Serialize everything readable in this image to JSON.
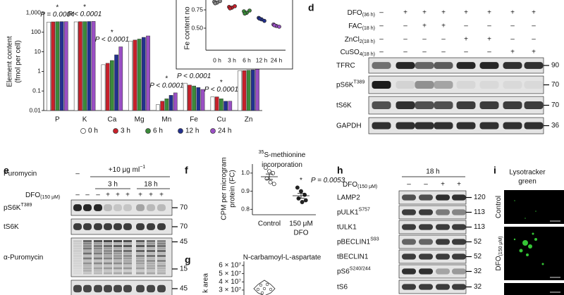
{
  "chart_data": [
    {
      "type": "bar",
      "ylabel": [
        "Element content",
        "(fmol per cell)"
      ],
      "categories": [
        "P",
        "K",
        "Ca",
        "Mg",
        "Mn",
        "Fe",
        "Cu",
        "Zn"
      ],
      "series": [
        {
          "name": "0 h",
          "color": "#ffffff",
          "values": [
            330,
            340,
            2.2,
            35,
            0.02,
            0.25,
            0.05,
            1.1
          ]
        },
        {
          "name": "3 h",
          "color": "#c8202a",
          "values": [
            340,
            350,
            2.6,
            40,
            0.03,
            0.2,
            0.05,
            1.1
          ]
        },
        {
          "name": "6 h",
          "color": "#3b8a3a",
          "values": [
            345,
            350,
            3.6,
            45,
            0.04,
            0.18,
            0.04,
            1.15
          ]
        },
        {
          "name": "12 h",
          "color": "#22308f",
          "values": [
            350,
            355,
            7,
            55,
            0.06,
            0.15,
            0.03,
            1.2
          ]
        },
        {
          "name": "24 h",
          "color": "#9a4fc4",
          "values": [
            350,
            360,
            18,
            65,
            0.08,
            0.12,
            0.03,
            1.3
          ]
        }
      ],
      "log_scale": true,
      "ylim": [
        0.01,
        1000
      ],
      "yticks": [
        0.01,
        0.1,
        1,
        10,
        100,
        {
          "value": 1000,
          "label": "1,000"
        }
      ],
      "annotations": [
        {
          "star": "*",
          "text": "P = 0.0004"
        },
        {
          "star": "*",
          "text": "P < 0.0001"
        },
        {
          "star": "*",
          "text": "P < 0.0001"
        },
        null,
        {
          "star": "*",
          "text": "P < 0.0001"
        },
        {
          "star": "*",
          "text": "P < 0.0001"
        },
        {
          "star": "*",
          "text": "P < 0.0001"
        },
        {
          "star": "*",
          "text": "P < 0.0001"
        }
      ],
      "legend": "bottom"
    },
    {
      "type": "scatter",
      "ylabel": "Fe content no",
      "categories": [
        "0 h",
        "3 h",
        "6 h",
        "12 h",
        "24 h"
      ],
      "colors": [
        "#888888",
        "#c8202a",
        "#3b8a3a",
        "#22308f",
        "#9a4fc4"
      ],
      "values": [
        [
          0.86,
          0.85,
          0.87,
          0.84
        ],
        [
          0.79,
          0.78,
          0.8,
          0.77
        ],
        [
          0.73,
          0.71,
          0.74,
          0.7
        ],
        [
          0.64,
          0.62,
          0.6,
          0.63
        ],
        [
          0.55,
          0.53,
          0.52,
          0.54
        ]
      ],
      "ylim": [
        0.2,
        0.9
      ],
      "yticks": [
        0.75,
        {
          "value": 0.5,
          "label": "0.50"
        }
      ]
    },
    {
      "type": "scatter",
      "panel": "f",
      "title_lines": [
        {
          "sup": "35",
          "text": "S-methionine"
        },
        {
          "text": "incorporation"
        }
      ],
      "ylabel": [
        "CPM per microgram",
        "protein (FC)"
      ],
      "categories": [
        [
          "Control"
        ],
        [
          "150 μM",
          "DFO"
        ]
      ],
      "colors": [
        "#ffffff",
        "#222222"
      ],
      "values": [
        [
          1.03,
          1.01,
          1.0,
          0.97,
          0.95,
          0.94
        ],
        [
          0.92,
          0.9,
          0.88,
          0.86,
          0.84,
          0.85
        ]
      ],
      "means": [
        0.98,
        0.875
      ],
      "errors": [
        0.015,
        0.013
      ],
      "ylim": [
        0.77,
        1.05
      ],
      "yticks": [
        {
          "value": 1,
          "label": "1.0"
        },
        0.9,
        0.8
      ],
      "annotations": [
        null,
        {
          "star": "*",
          "text": "P = 0.0053"
        }
      ]
    },
    {
      "type": "violin",
      "panel": "g",
      "title": "N-carbamoyl-L-aspartate",
      "ylabel": "k area",
      "ylim": [
        28000000,
        65000000
      ],
      "yticks": [
        {
          "value": 60000000,
          "label": "6 × 10⁷"
        },
        {
          "value": 50000000,
          "label": "5 × 10⁷"
        },
        {
          "value": 40000000,
          "label": "4 × 10⁷"
        },
        {
          "value": 30000000,
          "label": "3 × 10⁷"
        }
      ]
    }
  ],
  "blot_d": {
    "panel": "d",
    "conditions": [
      {
        "label": {
          "text": "DFO",
          "sub": "(36 h)"
        },
        "signs": [
          "–",
          "+",
          "+",
          "+",
          "+",
          "+",
          "+",
          "+"
        ]
      },
      {
        "label": {
          "text": "FAC",
          "sub": "(18 h)"
        },
        "signs": [
          "–",
          "–",
          "+",
          "+",
          "–",
          "–",
          "–",
          "–"
        ]
      },
      {
        "label": {
          "text": "ZnCl",
          "sub": "2(18 h)"
        },
        "signs": [
          "–",
          "–",
          "–",
          "–",
          "+",
          "+",
          "–",
          "–"
        ]
      },
      {
        "label": {
          "text": "CuSO",
          "sub": "4(18 h)"
        },
        "signs": [
          "–",
          "–",
          "–",
          "–",
          "–",
          "–",
          "+",
          "+"
        ]
      }
    ],
    "rows": [
      {
        "label": {
          "text": "TFRC"
        },
        "markers": [
          90
        ]
      },
      {
        "label": {
          "text": "pS6K",
          "sup": "T389"
        },
        "markers": [
          70
        ]
      },
      {
        "label": {
          "text": "tS6K"
        },
        "markers": [
          70
        ]
      },
      {
        "label": {
          "text": "GAPDH"
        },
        "markers": [
          36
        ]
      }
    ]
  },
  "blot_e": {
    "panel": "e",
    "treatment": {
      "label": "Puromycin",
      "signs": [
        "–"
      ],
      "dose": {
        "text": "+10 μg ml",
        "sup": "−1"
      }
    },
    "timepoints": [
      "3 h",
      "18 h"
    ],
    "conditions": [
      {
        "label": {
          "text": "DFO",
          "sub": "(150 μM)"
        },
        "signs": [
          "–",
          "–",
          "–",
          "+",
          "+",
          "+",
          "+",
          "+",
          "+"
        ]
      }
    ],
    "rows": [
      {
        "label": {
          "text": "pS6K",
          "sup": "T389"
        },
        "markers": [
          70
        ]
      },
      {
        "label": {
          "text": "tS6K"
        },
        "markers": [
          70
        ]
      },
      {
        "label": {
          "text": "α-Puromycin"
        },
        "markers": [
          45,
          15
        ]
      },
      {
        "markers": [
          45
        ]
      }
    ]
  },
  "blot_h": {
    "panel": "h",
    "timepoint": "18 h",
    "conditions": [
      {
        "label": {
          "text": "DFO",
          "sub": "(150 μM)"
        },
        "signs": [
          "–",
          "–",
          "+",
          "+"
        ]
      }
    ],
    "rows": [
      {
        "label": {
          "text": "LAMP2"
        },
        "markers": [
          120
        ]
      },
      {
        "label": {
          "text": "pULK1",
          "sup": "S757"
        },
        "markers": [
          113
        ]
      },
      {
        "label": {
          "text": "tULK1"
        },
        "markers": [
          113
        ]
      },
      {
        "label": {
          "text": "pBECLIN1",
          "sup": "S93"
        },
        "markers": [
          52
        ]
      },
      {
        "label": {
          "text": "tBECLIN1"
        },
        "markers": [
          52
        ]
      },
      {
        "label": {
          "text": "pS6",
          "sup": "S240/244"
        },
        "markers": [
          32
        ]
      },
      {
        "label": {
          "text": "tS6"
        },
        "markers": [
          32
        ]
      }
    ]
  },
  "panel_i": {
    "panel": "i",
    "title": [
      "Lysotracker",
      "green"
    ],
    "rows": [
      {
        "text": "Control"
      },
      {
        "text": "DFO",
        "sub": "(150 μM)"
      }
    ]
  }
}
